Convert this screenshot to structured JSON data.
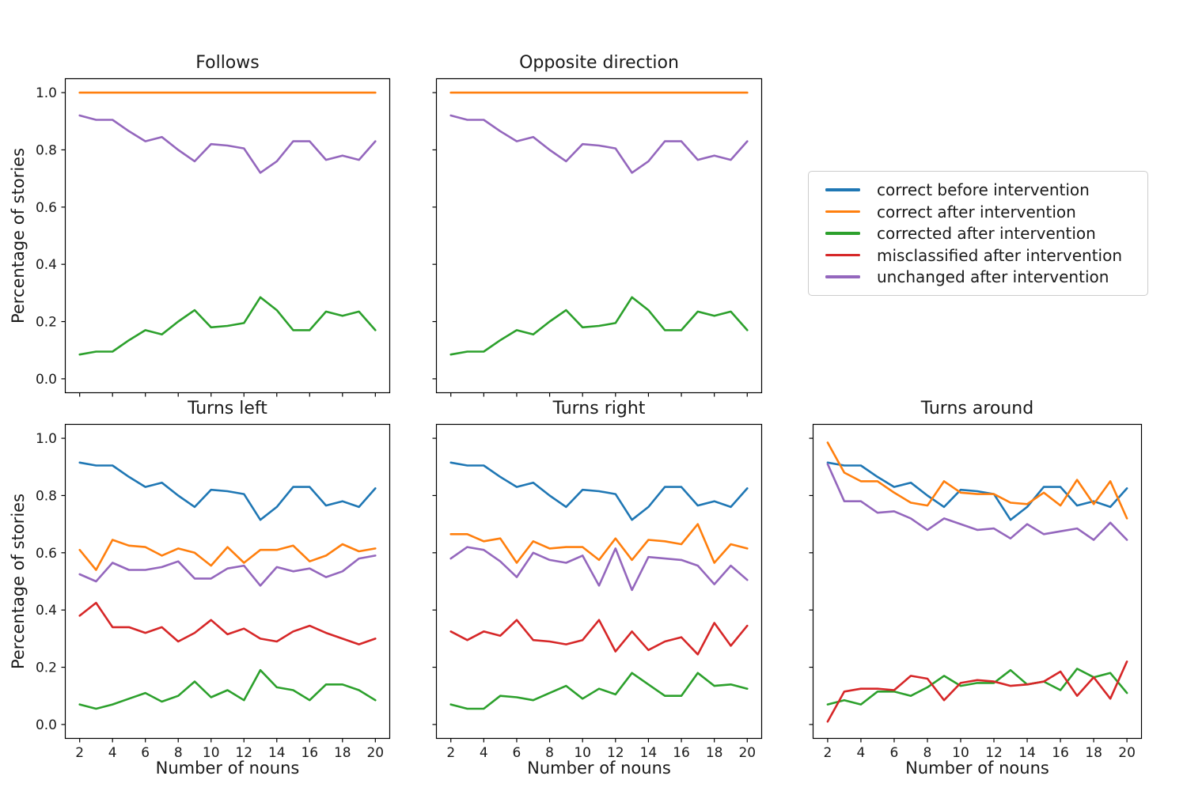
{
  "figure": {
    "background": "#ffffff",
    "text_color": "#1a1a1a",
    "spine_color": "#000000"
  },
  "axes": {
    "xlabel": "Number of nouns",
    "ylabel": "Percentage of stories",
    "x_ticks": [
      2,
      4,
      6,
      8,
      10,
      12,
      14,
      16,
      18,
      20
    ],
    "y_tick_values": [
      0.0,
      0.2,
      0.4,
      0.6,
      0.8,
      1.0
    ],
    "y_tick_labels": [
      "0.0",
      "0.2",
      "0.4",
      "0.6",
      "0.8",
      "1.0"
    ],
    "xlim": [
      1.1,
      20.9
    ],
    "ylim": [
      -0.05,
      1.05
    ],
    "grid": false
  },
  "legend": {
    "position": "upper right area, outside top-right empty panel",
    "entries": [
      {
        "label": "correct before intervention",
        "color": "#1f77b4"
      },
      {
        "label": "correct after intervention",
        "color": "#ff7f0e"
      },
      {
        "label": "corrected after intervention",
        "color": "#2ca02c"
      },
      {
        "label": "misclassified after intervention",
        "color": "#d62728"
      },
      {
        "label": "unchanged after intervention",
        "color": "#9467bd"
      }
    ]
  },
  "chart_data": [
    {
      "id": "follows",
      "type": "line",
      "title": "Follows",
      "x": [
        2,
        3,
        4,
        5,
        6,
        7,
        8,
        9,
        10,
        11,
        12,
        13,
        14,
        15,
        16,
        17,
        18,
        19,
        20
      ],
      "series": [
        {
          "name": "correct after intervention",
          "color": "#ff7f0e",
          "values": [
            1.0,
            1.0,
            1.0,
            1.0,
            1.0,
            1.0,
            1.0,
            1.0,
            1.0,
            1.0,
            1.0,
            1.0,
            1.0,
            1.0,
            1.0,
            1.0,
            1.0,
            1.0,
            1.0
          ]
        },
        {
          "name": "corrected after intervention",
          "color": "#2ca02c",
          "values": [
            0.085,
            0.095,
            0.095,
            0.135,
            0.17,
            0.155,
            0.2,
            0.24,
            0.18,
            0.185,
            0.195,
            0.285,
            0.24,
            0.17,
            0.17,
            0.235,
            0.22,
            0.235,
            0.17
          ]
        },
        {
          "name": "unchanged after intervention",
          "color": "#9467bd",
          "values": [
            0.92,
            0.905,
            0.905,
            0.865,
            0.83,
            0.845,
            0.8,
            0.76,
            0.82,
            0.815,
            0.805,
            0.72,
            0.76,
            0.83,
            0.83,
            0.765,
            0.78,
            0.765,
            0.83
          ]
        }
      ]
    },
    {
      "id": "opposite",
      "type": "line",
      "title": "Opposite direction",
      "x": [
        2,
        3,
        4,
        5,
        6,
        7,
        8,
        9,
        10,
        11,
        12,
        13,
        14,
        15,
        16,
        17,
        18,
        19,
        20
      ],
      "series": [
        {
          "name": "correct after intervention",
          "color": "#ff7f0e",
          "values": [
            1.0,
            1.0,
            1.0,
            1.0,
            1.0,
            1.0,
            1.0,
            1.0,
            1.0,
            1.0,
            1.0,
            1.0,
            1.0,
            1.0,
            1.0,
            1.0,
            1.0,
            1.0,
            1.0
          ]
        },
        {
          "name": "corrected after intervention",
          "color": "#2ca02c",
          "values": [
            0.085,
            0.095,
            0.095,
            0.135,
            0.17,
            0.155,
            0.2,
            0.24,
            0.18,
            0.185,
            0.195,
            0.285,
            0.24,
            0.17,
            0.17,
            0.235,
            0.22,
            0.235,
            0.17
          ]
        },
        {
          "name": "unchanged after intervention",
          "color": "#9467bd",
          "values": [
            0.92,
            0.905,
            0.905,
            0.865,
            0.83,
            0.845,
            0.8,
            0.76,
            0.82,
            0.815,
            0.805,
            0.72,
            0.76,
            0.83,
            0.83,
            0.765,
            0.78,
            0.765,
            0.83
          ]
        }
      ]
    },
    {
      "id": "turns_left",
      "type": "line",
      "title": "Turns left",
      "x": [
        2,
        3,
        4,
        5,
        6,
        7,
        8,
        9,
        10,
        11,
        12,
        13,
        14,
        15,
        16,
        17,
        18,
        19,
        20
      ],
      "series": [
        {
          "name": "correct before intervention",
          "color": "#1f77b4",
          "values": [
            0.915,
            0.905,
            0.905,
            0.865,
            0.83,
            0.845,
            0.8,
            0.76,
            0.82,
            0.815,
            0.805,
            0.715,
            0.76,
            0.83,
            0.83,
            0.765,
            0.78,
            0.76,
            0.825
          ]
        },
        {
          "name": "correct after intervention",
          "color": "#ff7f0e",
          "values": [
            0.61,
            0.54,
            0.645,
            0.625,
            0.62,
            0.59,
            0.615,
            0.6,
            0.555,
            0.62,
            0.565,
            0.61,
            0.61,
            0.625,
            0.57,
            0.59,
            0.63,
            0.605,
            0.615
          ]
        },
        {
          "name": "corrected after intervention",
          "color": "#2ca02c",
          "values": [
            0.07,
            0.055,
            0.07,
            0.09,
            0.11,
            0.08,
            0.1,
            0.15,
            0.095,
            0.12,
            0.085,
            0.19,
            0.13,
            0.12,
            0.085,
            0.14,
            0.14,
            0.12,
            0.085
          ]
        },
        {
          "name": "misclassified after intervention",
          "color": "#d62728",
          "values": [
            0.38,
            0.425,
            0.34,
            0.34,
            0.32,
            0.34,
            0.29,
            0.32,
            0.365,
            0.315,
            0.335,
            0.3,
            0.29,
            0.325,
            0.345,
            0.32,
            0.3,
            0.28,
            0.3
          ]
        },
        {
          "name": "unchanged after intervention",
          "color": "#9467bd",
          "values": [
            0.525,
            0.5,
            0.565,
            0.54,
            0.54,
            0.55,
            0.57,
            0.51,
            0.51,
            0.545,
            0.555,
            0.485,
            0.55,
            0.535,
            0.545,
            0.515,
            0.535,
            0.58,
            0.59
          ]
        }
      ]
    },
    {
      "id": "turns_right",
      "type": "line",
      "title": "Turns right",
      "x": [
        2,
        3,
        4,
        5,
        6,
        7,
        8,
        9,
        10,
        11,
        12,
        13,
        14,
        15,
        16,
        17,
        18,
        19,
        20
      ],
      "series": [
        {
          "name": "correct before intervention",
          "color": "#1f77b4",
          "values": [
            0.915,
            0.905,
            0.905,
            0.865,
            0.83,
            0.845,
            0.8,
            0.76,
            0.82,
            0.815,
            0.805,
            0.715,
            0.76,
            0.83,
            0.83,
            0.765,
            0.78,
            0.76,
            0.825
          ]
        },
        {
          "name": "correct after intervention",
          "color": "#ff7f0e",
          "values": [
            0.665,
            0.665,
            0.64,
            0.65,
            0.565,
            0.64,
            0.615,
            0.62,
            0.62,
            0.575,
            0.65,
            0.575,
            0.645,
            0.64,
            0.63,
            0.7,
            0.565,
            0.63,
            0.615
          ]
        },
        {
          "name": "corrected after intervention",
          "color": "#2ca02c",
          "values": [
            0.07,
            0.055,
            0.055,
            0.1,
            0.095,
            0.085,
            0.11,
            0.135,
            0.09,
            0.125,
            0.105,
            0.18,
            0.14,
            0.1,
            0.1,
            0.18,
            0.135,
            0.14,
            0.125
          ]
        },
        {
          "name": "misclassified after intervention",
          "color": "#d62728",
          "values": [
            0.325,
            0.295,
            0.325,
            0.31,
            0.365,
            0.295,
            0.29,
            0.28,
            0.295,
            0.365,
            0.255,
            0.325,
            0.26,
            0.29,
            0.305,
            0.245,
            0.355,
            0.275,
            0.345
          ]
        },
        {
          "name": "unchanged after intervention",
          "color": "#9467bd",
          "values": [
            0.58,
            0.62,
            0.61,
            0.57,
            0.515,
            0.6,
            0.575,
            0.565,
            0.59,
            0.485,
            0.615,
            0.47,
            0.585,
            0.58,
            0.575,
            0.555,
            0.49,
            0.555,
            0.505
          ]
        }
      ]
    },
    {
      "id": "turns_around",
      "type": "line",
      "title": "Turns around",
      "x": [
        2,
        3,
        4,
        5,
        6,
        7,
        8,
        9,
        10,
        11,
        12,
        13,
        14,
        15,
        16,
        17,
        18,
        19,
        20
      ],
      "series": [
        {
          "name": "correct before intervention",
          "color": "#1f77b4",
          "values": [
            0.915,
            0.905,
            0.905,
            0.865,
            0.83,
            0.845,
            0.8,
            0.76,
            0.82,
            0.815,
            0.805,
            0.715,
            0.76,
            0.83,
            0.83,
            0.765,
            0.78,
            0.76,
            0.825
          ]
        },
        {
          "name": "correct after intervention",
          "color": "#ff7f0e",
          "values": [
            0.985,
            0.88,
            0.85,
            0.85,
            0.81,
            0.775,
            0.765,
            0.85,
            0.81,
            0.805,
            0.805,
            0.775,
            0.77,
            0.81,
            0.765,
            0.855,
            0.77,
            0.85,
            0.72
          ]
        },
        {
          "name": "corrected after intervention",
          "color": "#2ca02c",
          "values": [
            0.07,
            0.085,
            0.07,
            0.115,
            0.115,
            0.1,
            0.13,
            0.17,
            0.135,
            0.145,
            0.145,
            0.19,
            0.14,
            0.15,
            0.12,
            0.195,
            0.165,
            0.18,
            0.11
          ]
        },
        {
          "name": "misclassified after intervention",
          "color": "#d62728",
          "values": [
            0.01,
            0.115,
            0.125,
            0.125,
            0.12,
            0.17,
            0.16,
            0.085,
            0.145,
            0.155,
            0.15,
            0.135,
            0.14,
            0.15,
            0.185,
            0.1,
            0.165,
            0.09,
            0.22
          ]
        },
        {
          "name": "unchanged after intervention",
          "color": "#9467bd",
          "values": [
            0.91,
            0.78,
            0.78,
            0.74,
            0.745,
            0.72,
            0.68,
            0.72,
            0.7,
            0.68,
            0.685,
            0.65,
            0.7,
            0.665,
            0.675,
            0.685,
            0.645,
            0.705,
            0.645
          ]
        }
      ]
    }
  ]
}
